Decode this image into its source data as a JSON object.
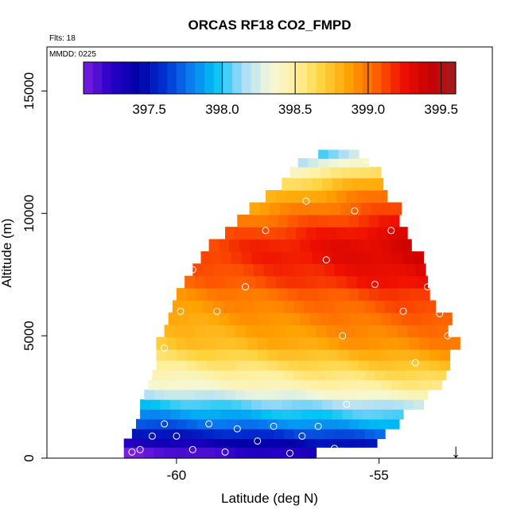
{
  "chart_data": {
    "type": "heatmap",
    "title": "ORCAS RF18 CO2_FMPD",
    "annotations": [
      "Flts: 18",
      "MMDD: 0225"
    ],
    "xlabel": "Latitude (deg N)",
    "ylabel": "Altitude (m)",
    "xlim": [
      -63.2,
      -52.2
    ],
    "ylim": [
      0,
      16800
    ],
    "x_ticks": [
      -60,
      -55
    ],
    "x_tick_labels": [
      "-60",
      "-55"
    ],
    "y_ticks": [
      0,
      5000,
      10000,
      15000
    ],
    "y_tick_labels": [
      "0",
      "5000",
      "10000",
      "15000"
    ],
    "colorbar": {
      "range": [
        397.05,
        399.6
      ],
      "ticks": [
        397.5,
        398.0,
        398.5,
        399.0,
        399.5
      ],
      "tick_labels": [
        "397.5",
        "398.0",
        "398.5",
        "399.0",
        "399.5"
      ],
      "colors": [
        "#7a1fe0",
        "#2a00c8",
        "#0000a8",
        "#002ed0",
        "#0a7af0",
        "#00c4f4",
        "#a8dcf8",
        "#f4f8d8",
        "#fff0a0",
        "#ffd23c",
        "#ffa000",
        "#ff6000",
        "#f01000",
        "#c80000",
        "#a41e1e"
      ]
    },
    "grid": false,
    "heatmap_rows": [
      {
        "alt": 300,
        "lat_min": -61.3,
        "lat_max": -56.6,
        "value": 397.15
      },
      {
        "alt": 600,
        "lat_min": -61.3,
        "lat_max": -55.2,
        "value": 397.35
      },
      {
        "alt": 1000,
        "lat_min": -61.1,
        "lat_max": -55.0,
        "value": 397.55
      },
      {
        "alt": 1400,
        "lat_min": -61.0,
        "lat_max": -54.6,
        "value": 397.75
      },
      {
        "alt": 1800,
        "lat_min": -60.9,
        "lat_max": -54.4,
        "value": 397.9
      },
      {
        "alt": 2200,
        "lat_min": -60.9,
        "lat_max": -54.0,
        "value": 398.05
      },
      {
        "alt": 2600,
        "lat_min": -60.8,
        "lat_max": -53.9,
        "value": 398.25
      },
      {
        "alt": 3000,
        "lat_min": -60.7,
        "lat_max": -53.6,
        "value": 398.4
      },
      {
        "alt": 3400,
        "lat_min": -60.6,
        "lat_max": -53.5,
        "value": 398.5
      },
      {
        "alt": 3800,
        "lat_min": -60.5,
        "lat_max": -53.4,
        "value": 398.6
      },
      {
        "alt": 4200,
        "lat_min": -60.5,
        "lat_max": -53.3,
        "value": 398.7
      },
      {
        "alt": 4700,
        "lat_min": -60.5,
        "lat_max": -53.2,
        "value": 398.8
      },
      {
        "alt": 5200,
        "lat_min": -60.3,
        "lat_max": -53.3,
        "value": 398.85
      },
      {
        "alt": 5700,
        "lat_min": -60.2,
        "lat_max": -53.4,
        "value": 398.9
      },
      {
        "alt": 6200,
        "lat_min": -60.1,
        "lat_max": -53.6,
        "value": 398.95
      },
      {
        "alt": 6700,
        "lat_min": -60.0,
        "lat_max": -53.8,
        "value": 399.0
      },
      {
        "alt": 7200,
        "lat_min": -59.8,
        "lat_max": -53.9,
        "value": 399.1
      },
      {
        "alt": 7700,
        "lat_min": -59.6,
        "lat_max": -54.0,
        "value": 399.15
      },
      {
        "alt": 8200,
        "lat_min": -59.4,
        "lat_max": -54.0,
        "value": 399.2
      },
      {
        "alt": 8700,
        "lat_min": -59.2,
        "lat_max": -54.2,
        "value": 399.2
      },
      {
        "alt": 9200,
        "lat_min": -58.8,
        "lat_max": -54.3,
        "value": 399.15
      },
      {
        "alt": 9700,
        "lat_min": -58.5,
        "lat_max": -54.5,
        "value": 399.05
      },
      {
        "alt": 10200,
        "lat_min": -58.2,
        "lat_max": -54.5,
        "value": 398.95
      },
      {
        "alt": 10700,
        "lat_min": -57.8,
        "lat_max": -54.8,
        "value": 398.85
      },
      {
        "alt": 11200,
        "lat_min": -57.4,
        "lat_max": -54.9,
        "value": 398.7
      },
      {
        "alt": 11700,
        "lat_min": -57.2,
        "lat_max": -55.0,
        "value": 398.5
      },
      {
        "alt": 12100,
        "lat_min": -57.0,
        "lat_max": -55.4,
        "value": 398.25
      },
      {
        "alt": 12400,
        "lat_min": -56.5,
        "lat_max": -55.7,
        "value": 398.1
      }
    ],
    "observations": [
      {
        "lat": -61.1,
        "alt": 250
      },
      {
        "lat": -60.9,
        "alt": 350
      },
      {
        "lat": -60.6,
        "alt": 900
      },
      {
        "lat": -60.3,
        "alt": 1400
      },
      {
        "lat": -60.0,
        "alt": 900
      },
      {
        "lat": -59.6,
        "alt": 350
      },
      {
        "lat": -59.2,
        "alt": 1400
      },
      {
        "lat": -58.8,
        "alt": 250
      },
      {
        "lat": -58.5,
        "alt": 1200
      },
      {
        "lat": -58.0,
        "alt": 700
      },
      {
        "lat": -57.6,
        "alt": 1300
      },
      {
        "lat": -57.2,
        "alt": 200
      },
      {
        "lat": -56.9,
        "alt": 900
      },
      {
        "lat": -56.5,
        "alt": 1300
      },
      {
        "lat": -56.1,
        "alt": 400
      },
      {
        "lat": -55.8,
        "alt": 2200
      },
      {
        "lat": -60.8,
        "alt": 3000
      },
      {
        "lat": -60.3,
        "alt": 4500
      },
      {
        "lat": -59.9,
        "alt": 6000
      },
      {
        "lat": -59.6,
        "alt": 7700
      },
      {
        "lat": -59.0,
        "alt": 6000
      },
      {
        "lat": -58.3,
        "alt": 7000
      },
      {
        "lat": -57.8,
        "alt": 9300
      },
      {
        "lat": -57.1,
        "alt": 12100
      },
      {
        "lat": -56.8,
        "alt": 10500
      },
      {
        "lat": -56.3,
        "alt": 8100
      },
      {
        "lat": -55.9,
        "alt": 5000
      },
      {
        "lat": -55.6,
        "alt": 10100
      },
      {
        "lat": -55.3,
        "alt": 12200
      },
      {
        "lat": -55.1,
        "alt": 7100
      },
      {
        "lat": -54.7,
        "alt": 9300
      },
      {
        "lat": -54.4,
        "alt": 6000
      },
      {
        "lat": -54.1,
        "alt": 3900
      },
      {
        "lat": -53.8,
        "alt": 7000
      },
      {
        "lat": -53.5,
        "alt": 5900
      },
      {
        "lat": -53.3,
        "alt": 5000
      }
    ],
    "marker": {
      "symbol": "↓",
      "lat": -53.1
    }
  }
}
